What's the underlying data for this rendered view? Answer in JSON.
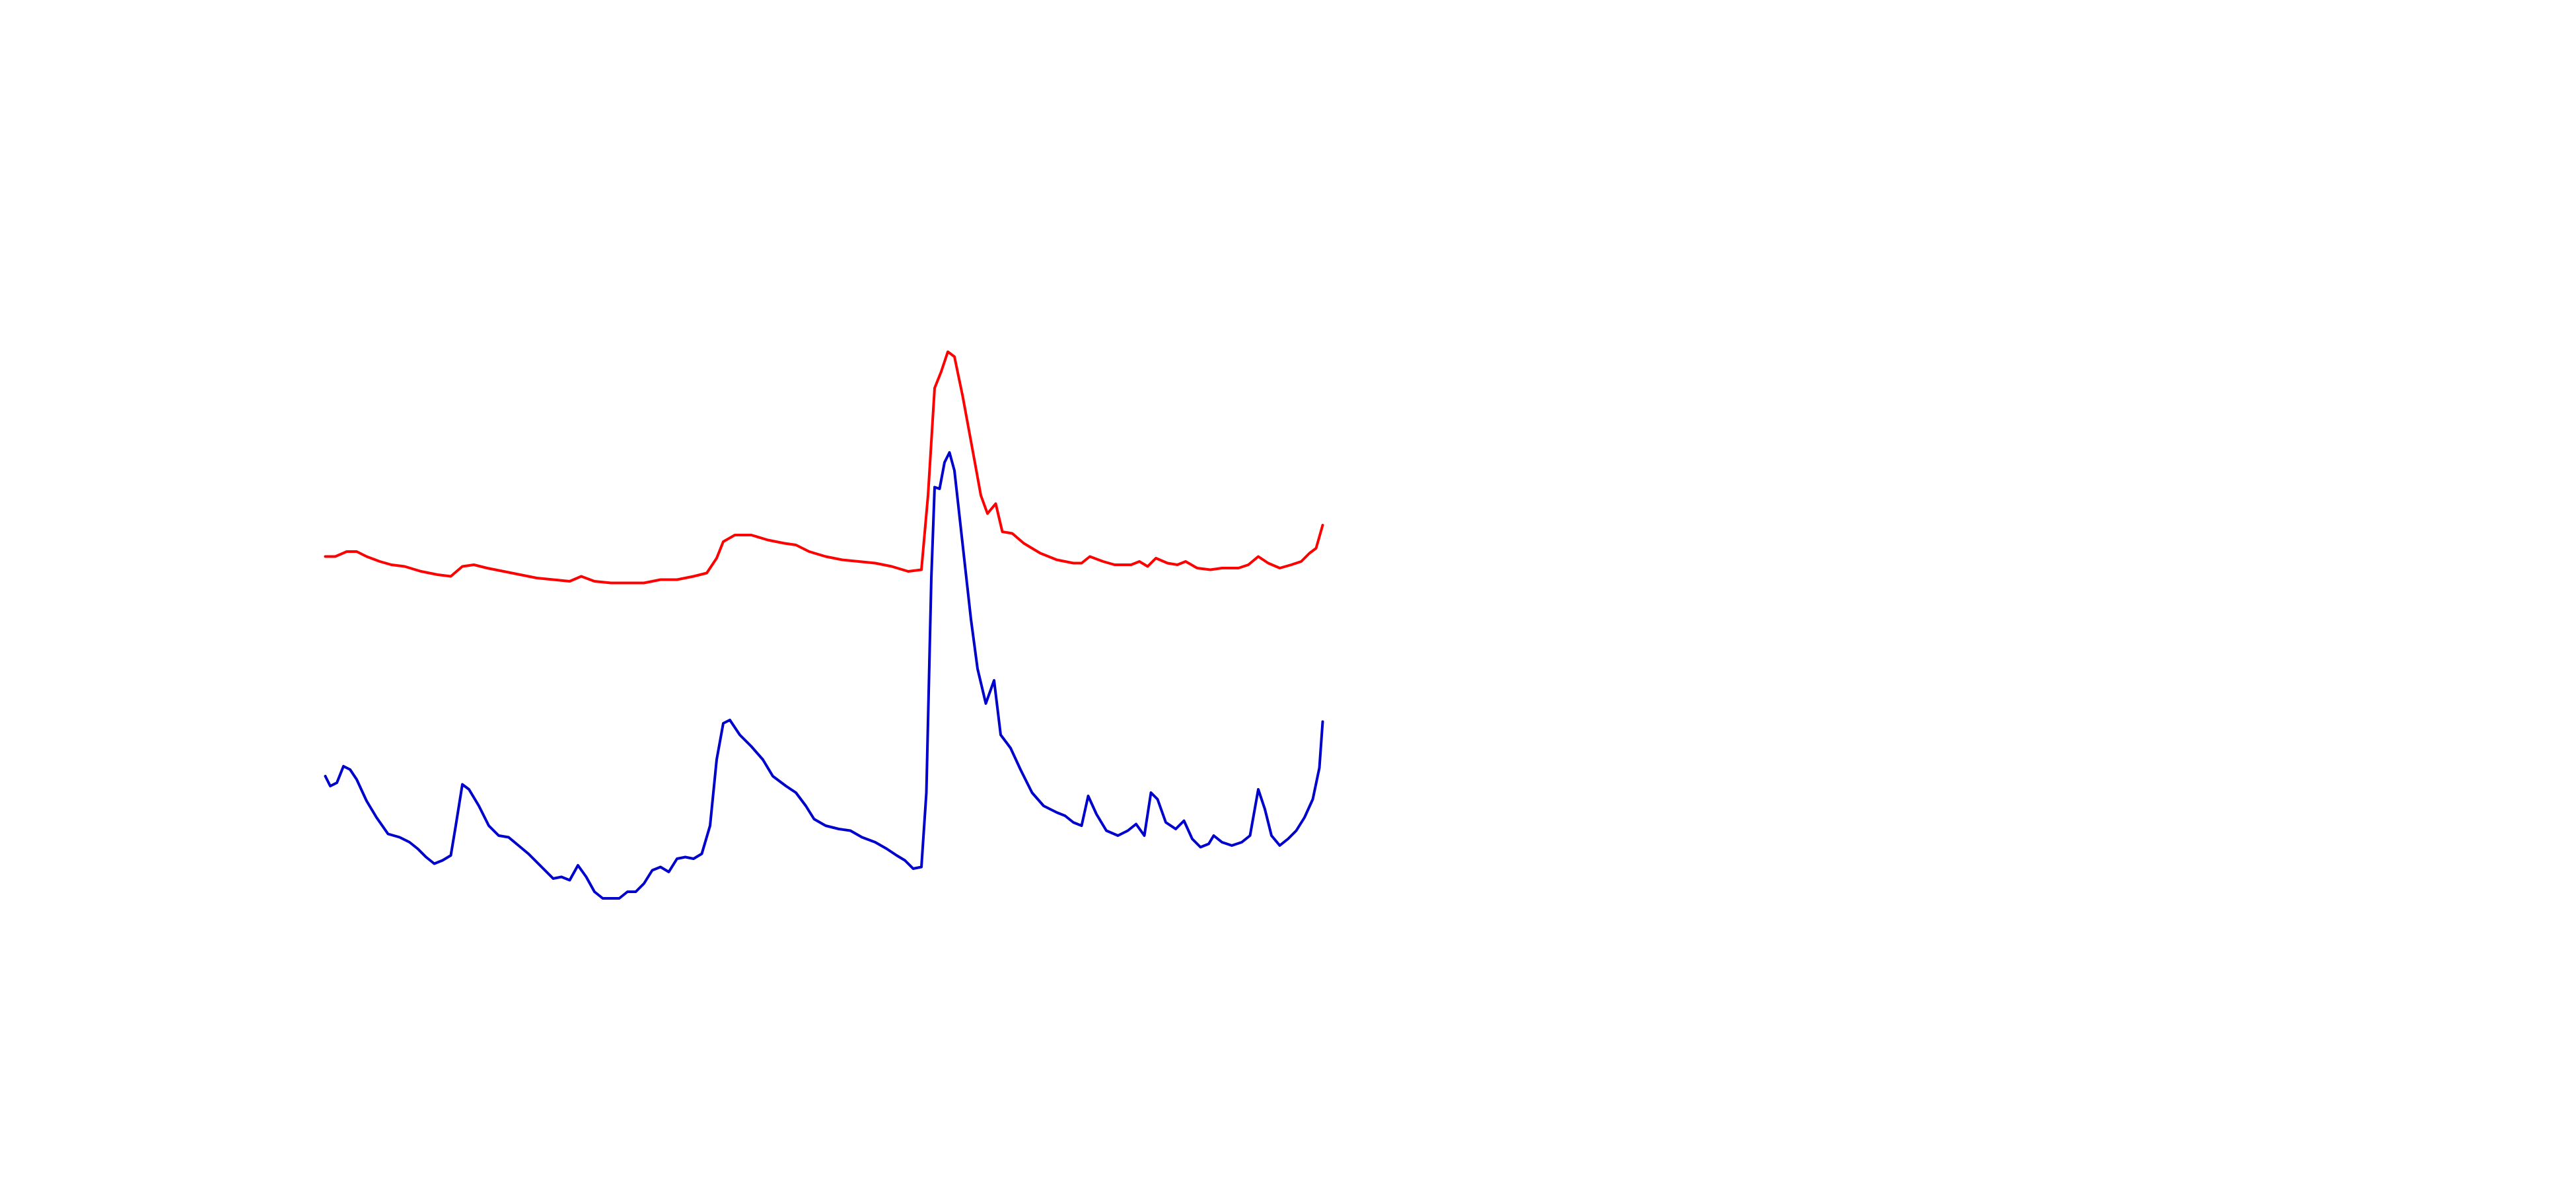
{
  "chart_data": {
    "type": "line",
    "xlim": [
      0,
      1560
    ],
    "ylim": [
      0,
      720
    ],
    "grid": false,
    "series": [
      {
        "color": "#ff0000",
        "x": [
          197,
          203,
          210,
          216,
          222,
          230,
          237,
          245,
          255,
          265,
          273,
          280,
          287,
          295,
          305,
          315,
          325,
          335,
          345,
          352,
          360,
          370,
          380,
          390,
          400,
          410,
          420,
          428,
          434,
          438,
          445,
          455,
          465,
          475,
          482,
          490,
          500,
          510,
          520,
          530,
          540,
          550,
          558,
          562,
          566,
          570,
          574,
          578,
          583,
          590,
          594,
          598,
          603,
          607,
          613,
          620,
          630,
          640,
          650,
          655,
          660,
          668,
          675,
          685,
          690,
          695,
          700,
          707,
          713,
          718,
          725,
          733,
          740,
          750,
          756,
          762,
          768,
          775,
          782,
          788,
          793,
          797,
          801
        ],
        "values": [
          383,
          383,
          386,
          386,
          383,
          380,
          378,
          377,
          374,
          372,
          371,
          377,
          378,
          376,
          374,
          372,
          370,
          369,
          368,
          371,
          368,
          367,
          367,
          367,
          369,
          369,
          371,
          373,
          382,
          392,
          396,
          396,
          393,
          391,
          390,
          386,
          383,
          381,
          380,
          379,
          377,
          374,
          375,
          420,
          485,
          495,
          507,
          504,
          480,
          442,
          420,
          409,
          415,
          398,
          397,
          391,
          385,
          381,
          379,
          379,
          383,
          380,
          378,
          378,
          380,
          377,
          382,
          379,
          378,
          380,
          376,
          375,
          376,
          376,
          378,
          383,
          379,
          376,
          378,
          380,
          385,
          388,
          402
        ]
      },
      {
        "color": "#0000cc",
        "x": [
          197,
          200,
          204,
          208,
          212,
          216,
          222,
          228,
          235,
          242,
          248,
          253,
          258,
          263,
          268,
          273,
          276,
          280,
          284,
          290,
          296,
          302,
          308,
          314,
          320,
          325,
          330,
          335,
          340,
          345,
          350,
          355,
          360,
          365,
          370,
          375,
          380,
          385,
          390,
          395,
          400,
          405,
          410,
          415,
          420,
          425,
          430,
          434,
          438,
          442,
          448,
          455,
          462,
          468,
          476,
          482,
          488,
          493,
          500,
          508,
          515,
          522,
          530,
          537,
          543,
          548,
          553,
          558,
          561,
          564,
          566,
          569,
          572,
          575,
          578,
          583,
          588,
          592,
          597,
          602,
          606,
          612,
          618,
          625,
          632,
          640,
          645,
          650,
          655,
          659,
          664,
          670,
          677,
          683,
          688,
          693,
          697,
          701,
          706,
          712,
          717,
          722,
          727,
          732,
          735,
          740,
          746,
          752,
          757,
          762,
          766,
          770,
          775,
          780,
          785,
          790,
          795,
          799,
          801
        ],
        "values": [
          250,
          244,
          246,
          256,
          254,
          248,
          235,
          225,
          215,
          213,
          210,
          206,
          201,
          197,
          199,
          202,
          220,
          245,
          242,
          232,
          220,
          214,
          213,
          208,
          203,
          198,
          193,
          188,
          189,
          187,
          196,
          189,
          180,
          176,
          176,
          176,
          180,
          180,
          185,
          193,
          195,
          192,
          200,
          201,
          200,
          203,
          220,
          260,
          282,
          284,
          275,
          268,
          260,
          250,
          244,
          240,
          232,
          224,
          220,
          218,
          217,
          213,
          210,
          206,
          202,
          199,
          194,
          195,
          240,
          370,
          425,
          424,
          440,
          446,
          435,
          390,
          345,
          315,
          294,
          308,
          275,
          267,
          254,
          240,
          232,
          228,
          226,
          222,
          220,
          238,
          227,
          217,
          214,
          217,
          221,
          214,
          240,
          236,
          222,
          218,
          223,
          212,
          207,
          209,
          214,
          210,
          208,
          210,
          214,
          242,
          230,
          214,
          208,
          212,
          217,
          225,
          236,
          255,
          283
        ]
      }
    ]
  }
}
